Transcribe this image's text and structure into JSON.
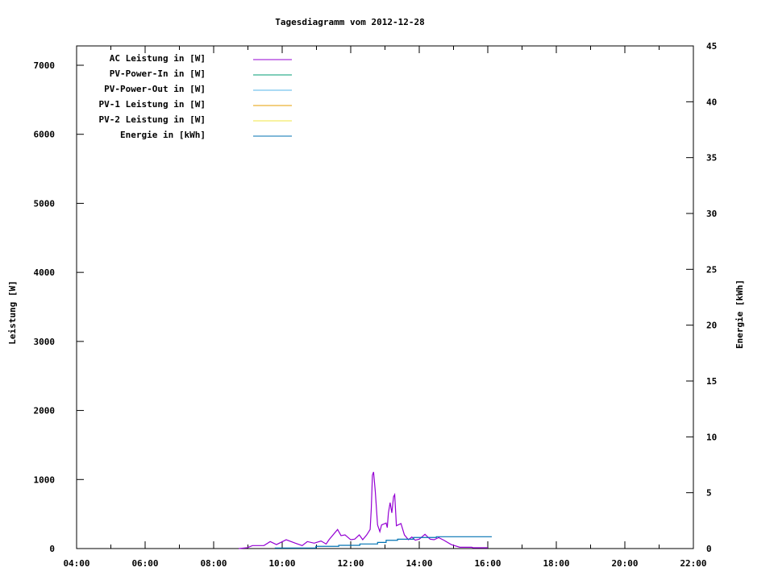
{
  "chart_data": {
    "type": "line",
    "title": "Tagesdiagramm vom 2012-12-28",
    "ylabel": "Leistung [W]",
    "y2label": "Energie [kWh]",
    "xlabel": "",
    "xlim": [
      "04:00",
      "22:00"
    ],
    "ylim": [
      0,
      7280
    ],
    "y2lim": [
      0,
      45
    ],
    "xticks": [
      "04:00",
      "06:00",
      "08:00",
      "10:00",
      "12:00",
      "14:00",
      "16:00",
      "18:00",
      "20:00",
      "22:00"
    ],
    "yticks": [
      0,
      1000,
      2000,
      3000,
      4000,
      5000,
      6000,
      7000
    ],
    "y2ticks": [
      0,
      5,
      10,
      15,
      20,
      25,
      30,
      35,
      40,
      45
    ],
    "legend_position": "top-left",
    "grid": false,
    "series": [
      {
        "name": "AC Leistung in [W]",
        "axis": "y",
        "color": "#9400d3",
        "x": [
          "08:44",
          "08:59",
          "09:08",
          "09:22",
          "09:28",
          "09:39",
          "09:50",
          "10:07",
          "10:23",
          "10:35",
          "10:44",
          "10:56",
          "11:08",
          "11:17",
          "11:22",
          "11:37",
          "11:43",
          "11:50",
          "12:00",
          "12:07",
          "12:15",
          "12:21",
          "12:28",
          "12:34",
          "12:36",
          "12:38",
          "12:40",
          "12:43",
          "12:47",
          "12:51",
          "12:54",
          "13:02",
          "13:04",
          "13:06",
          "13:09",
          "13:12",
          "13:15",
          "13:17",
          "13:20",
          "13:28",
          "13:34",
          "13:41",
          "13:47",
          "13:53",
          "14:00",
          "14:10",
          "14:19",
          "14:26",
          "14:34",
          "14:43",
          "14:56",
          "15:11",
          "15:32",
          "15:34",
          "16:00"
        ],
        "y": [
          0,
          12,
          43,
          43,
          43,
          101,
          58,
          128,
          78,
          43,
          101,
          78,
          109,
          66,
          128,
          276,
          187,
          198,
          128,
          136,
          198,
          128,
          198,
          276,
          576,
          1062,
          1109,
          829,
          342,
          245,
          342,
          370,
          303,
          517,
          665,
          517,
          751,
          782,
          330,
          362,
          198,
          128,
          167,
          121,
          136,
          206,
          136,
          128,
          159,
          121,
          58,
          19,
          19,
          12,
          12
        ]
      },
      {
        "name": "PV-Power-In in [W]",
        "axis": "y",
        "color": "#009e73",
        "x": [],
        "y": []
      },
      {
        "name": "PV-Power-Out in [W]",
        "axis": "y",
        "color": "#56b4e9",
        "x": [],
        "y": []
      },
      {
        "name": "PV-1 Leistung in [W]",
        "axis": "y",
        "color": "#e69f00",
        "x": [],
        "y": []
      },
      {
        "name": "PV-2 Leistung in [W]",
        "axis": "y",
        "color": "#f0e442",
        "x": [],
        "y": []
      },
      {
        "name": "Energie in [kWh]",
        "axis": "y2",
        "color": "#0072b2",
        "x": [
          "09:47",
          "10:59",
          "11:39",
          "12:16",
          "12:47",
          "13:02",
          "13:22",
          "13:50",
          "14:30",
          "16:07"
        ],
        "y": [
          0.05,
          0.2,
          0.29,
          0.41,
          0.55,
          0.74,
          0.84,
          0.99,
          1.06,
          1.06
        ]
      }
    ]
  }
}
